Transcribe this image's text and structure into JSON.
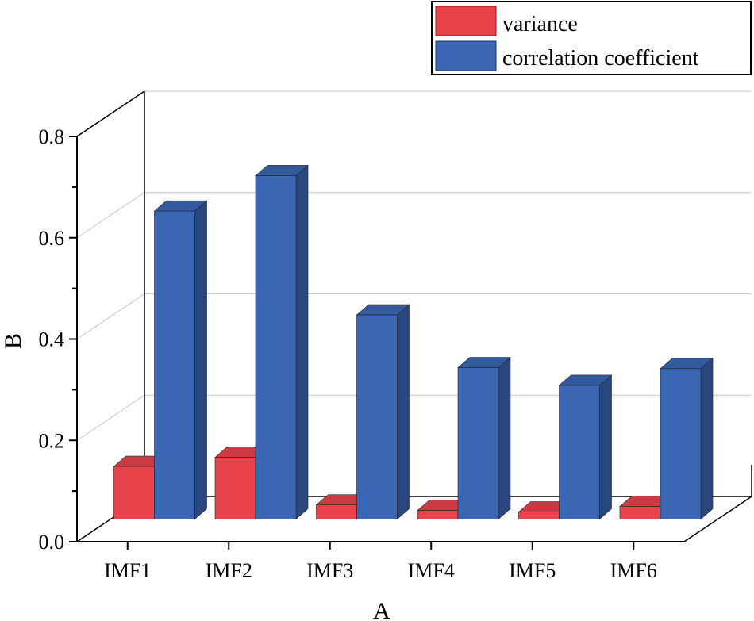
{
  "chart_data": {
    "type": "bar",
    "projection": "3d",
    "categories": [
      "IMF1",
      "IMF2",
      "IMF3",
      "IMF4",
      "IMF5",
      "IMF6"
    ],
    "series": [
      {
        "name": "variance",
        "color": "#e8424a",
        "values": [
          0.104,
          0.122,
          0.028,
          0.017,
          0.014,
          0.025
        ]
      },
      {
        "name": "correlation coefficient",
        "color": "#3b66b4",
        "values": [
          0.608,
          0.678,
          0.403,
          0.299,
          0.264,
          0.297
        ]
      }
    ],
    "xlabel": "A",
    "ylabel": "B",
    "ylim": [
      0,
      0.8
    ],
    "yticks": [
      "0.0",
      "0.2",
      "0.4",
      "0.6",
      "0.8"
    ],
    "grid": true,
    "legend": "top-right"
  }
}
